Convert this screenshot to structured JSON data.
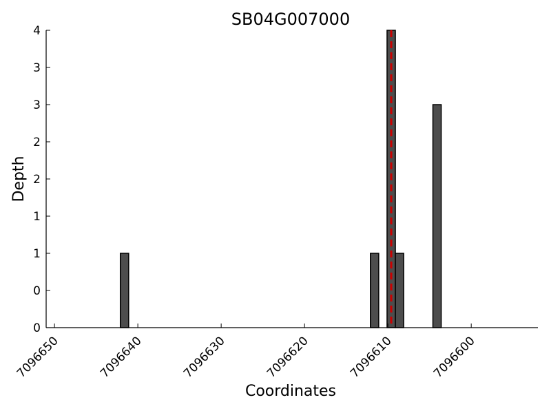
{
  "chart_data": {
    "type": "bar",
    "title": "SB04G007000",
    "xlabel": "Coordinates",
    "ylabel": "Depth",
    "x_reversed": true,
    "xlim": [
      7096651,
      7096592
    ],
    "ylim": [
      0,
      4
    ],
    "y_ticks": [
      0,
      0.5,
      1,
      1.5,
      2,
      2.5,
      3,
      3.5,
      4
    ],
    "y_tick_labels": [
      "0",
      "0",
      "1",
      "1",
      "2",
      "2",
      "3",
      "3",
      "4"
    ],
    "x_ticks": [
      7096650,
      7096640,
      7096630,
      7096620,
      7096610,
      7096600
    ],
    "x_tick_labels": [
      "7096650",
      "7096640",
      "7096630",
      "7096620",
      "7096610",
      "7096600"
    ],
    "grid": false,
    "bars": [
      {
        "x": 7096641.6,
        "value": 1
      },
      {
        "x": 7096611.6,
        "value": 1
      },
      {
        "x": 7096609.6,
        "value": 4
      },
      {
        "x": 7096608.6,
        "value": 1
      },
      {
        "x": 7096604.1,
        "value": 3
      }
    ],
    "bar_width": 1,
    "bar_color": "#4d4d4d",
    "reference_line": {
      "x": 7096609.6,
      "color": "#cc0000",
      "style": "dashed"
    }
  }
}
